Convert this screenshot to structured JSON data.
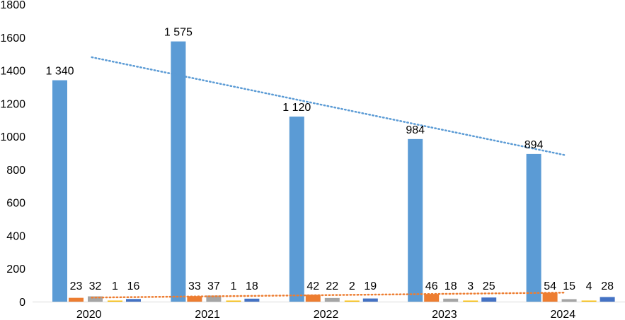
{
  "chart_data": {
    "type": "bar",
    "categories": [
      "2020",
      "2021",
      "2022",
      "2023",
      "2024"
    ],
    "series": [
      {
        "values": [
          1340,
          1575,
          1120,
          984,
          894
        ],
        "labels": [
          "1 340",
          "1 575",
          "1 120",
          "984",
          "894"
        ],
        "color": "#5B9BD5"
      },
      {
        "values": [
          23,
          33,
          42,
          46,
          54
        ],
        "labels": [
          "23",
          "33",
          "42",
          "46",
          "54"
        ],
        "color": "#ED7D31"
      },
      {
        "values": [
          32,
          37,
          22,
          18,
          15
        ],
        "labels": [
          "32",
          "37",
          "22",
          "18",
          "15"
        ],
        "color": "#A5A5A5"
      },
      {
        "values": [
          1,
          1,
          2,
          3,
          4
        ],
        "labels": [
          "1",
          "1",
          "2",
          "3",
          "4"
        ],
        "color": "#FFC000"
      },
      {
        "values": [
          16,
          18,
          19,
          25,
          28
        ],
        "labels": [
          "16",
          "18",
          "19",
          "25",
          "28"
        ],
        "color": "#4472C4"
      }
    ],
    "trendlines": [
      {
        "series_index": 0,
        "type": "linear",
        "style": "dotted",
        "color": "#5B9BD5"
      },
      {
        "series_index": 1,
        "type": "linear",
        "style": "dotted",
        "color": "#ED7D31"
      }
    ],
    "yticks": [
      "0",
      "200",
      "400",
      "600",
      "800",
      "1000",
      "1200",
      "1400",
      "1600",
      "1800"
    ],
    "ylim": [
      0,
      1800
    ],
    "grid": false,
    "legend": "none"
  }
}
